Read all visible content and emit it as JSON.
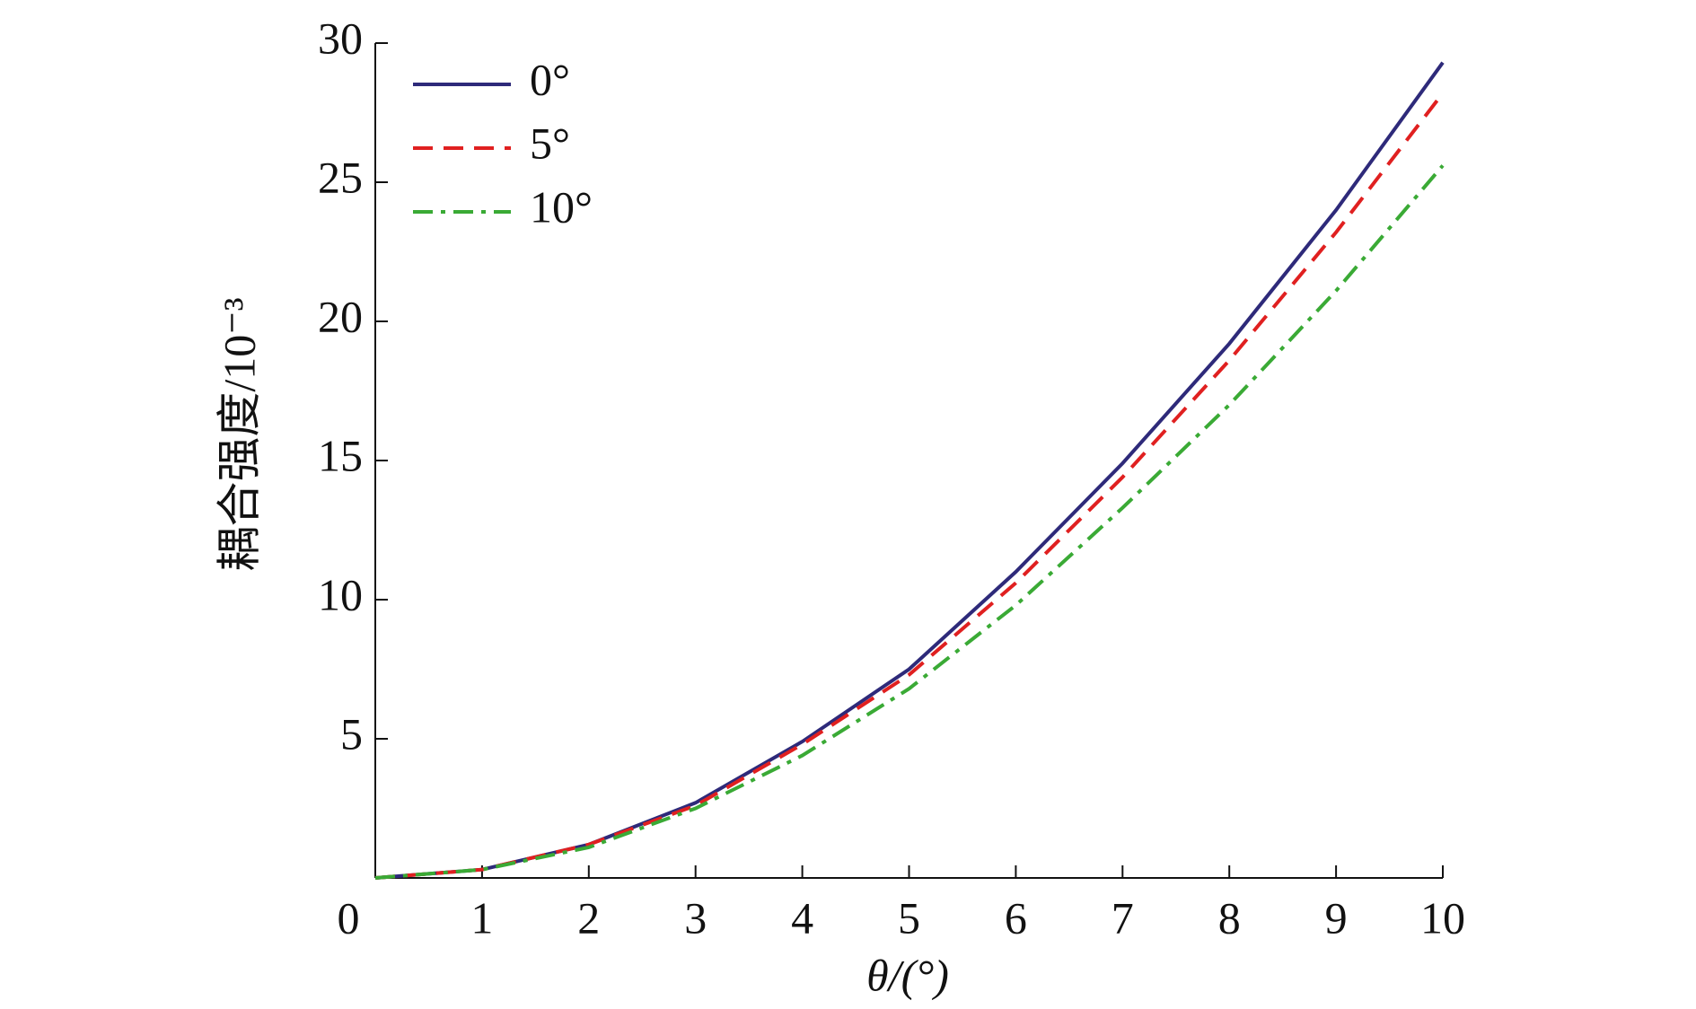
{
  "chart_data": {
    "type": "line",
    "x_label": "θ/(°)",
    "y_label": "耦合强度/10⁻³",
    "x": [
      0,
      1,
      2,
      3,
      4,
      5,
      6,
      7,
      8,
      9,
      10
    ],
    "series": [
      {
        "name": "0°",
        "color": "#2e2a7a",
        "dash": "solid",
        "values": [
          0,
          0.3,
          1.2,
          2.7,
          4.9,
          7.5,
          11.0,
          14.9,
          19.2,
          24.0,
          29.3
        ]
      },
      {
        "name": "5°",
        "color": "#e02020",
        "dash": "dashed",
        "values": [
          0,
          0.3,
          1.2,
          2.6,
          4.8,
          7.3,
          10.6,
          14.4,
          18.6,
          23.2,
          28.2
        ]
      },
      {
        "name": "10°",
        "color": "#3aaa35",
        "dash": "dashdot",
        "values": [
          0,
          0.3,
          1.1,
          2.5,
          4.4,
          6.8,
          9.8,
          13.3,
          17.0,
          21.1,
          25.6
        ]
      }
    ],
    "xlim": [
      0,
      10
    ],
    "xticks": [
      0,
      1,
      2,
      3,
      4,
      5,
      6,
      7,
      8,
      9,
      10
    ],
    "ylim": [
      0,
      30
    ],
    "yticks": [
      5,
      10,
      15,
      20,
      25,
      30
    ],
    "grid": false,
    "legend": "upper left"
  }
}
